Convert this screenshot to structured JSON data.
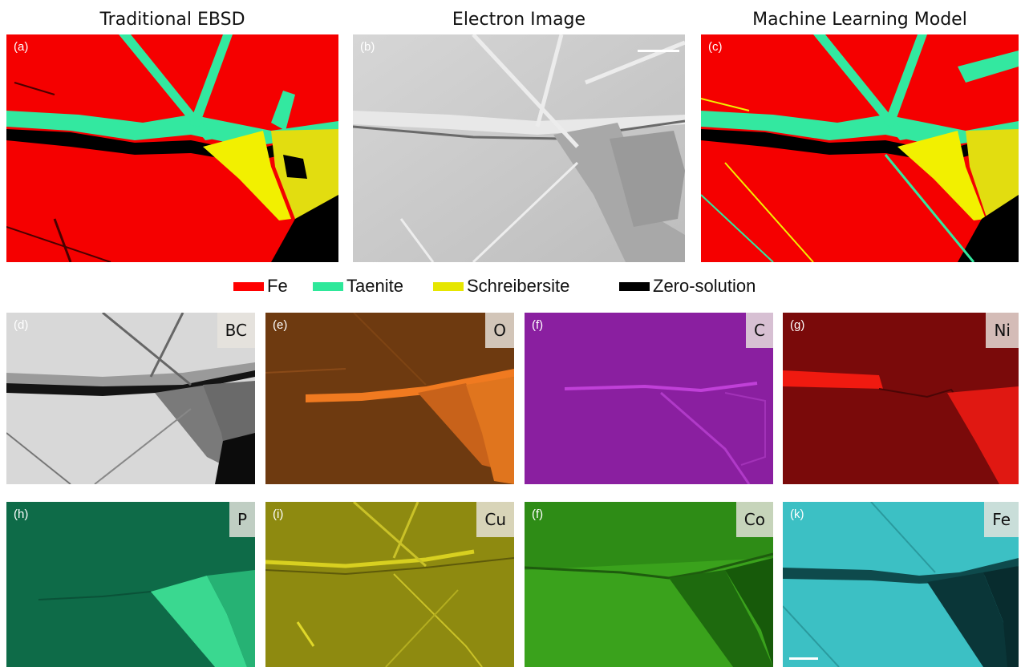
{
  "titles": {
    "col1": "Traditional EBSD",
    "col2": "Electron Image",
    "col3": "Machine Learning Model"
  },
  "panels": {
    "a": "(a)",
    "b": "(b)",
    "c": "(c)",
    "d": "(d)",
    "e": "(e)",
    "f1": "(f)",
    "g": "(g)",
    "h": "(h)",
    "i": "(i)",
    "f2": "(f)",
    "k": "(k)"
  },
  "elements": {
    "d": "BC",
    "e": "O",
    "f1": "C",
    "g": "Ni",
    "h": "P",
    "i": "Cu",
    "f2": "Co",
    "k": "Fe"
  },
  "legend": [
    {
      "label": "Fe",
      "color": "#ff0000"
    },
    {
      "label": "Taenite",
      "color": "#2ee89a"
    },
    {
      "label": "Schreibersite",
      "color": "#e6e600"
    },
    {
      "label": "Zero-solution",
      "color": "#000000"
    }
  ],
  "colors": {
    "fe": "#f50000",
    "taenite": "#33e8a0",
    "schreibersite": "#f2f000",
    "zero": "#000000",
    "sem": "#c9c9c9",
    "bc": "#d4d4d4",
    "o": "#6e3a10",
    "c": "#8a1fa0",
    "ni": "#7a0a0a",
    "p": "#0e6b48",
    "cu": "#8e8a10",
    "co": "#3aa21c",
    "fe_map": "#3cc0c4"
  },
  "icons": [
    "scale-bar"
  ]
}
